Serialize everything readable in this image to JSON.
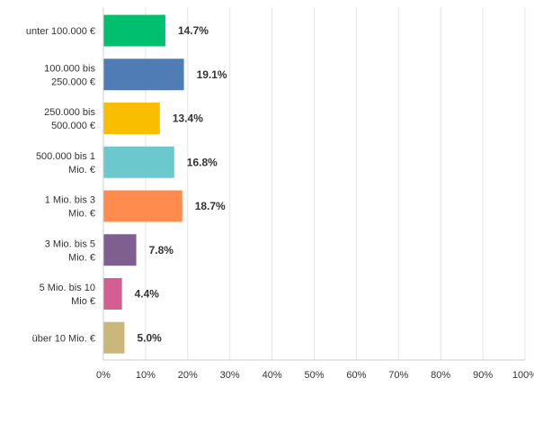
{
  "chart_data": {
    "type": "bar",
    "orientation": "horizontal",
    "categories": [
      [
        "unter 100.000 €"
      ],
      [
        "100.000 bis",
        "250.000 €"
      ],
      [
        "250.000 bis",
        "500.000 €"
      ],
      [
        "500.000 bis 1",
        "Mio. €"
      ],
      [
        "1 Mio. bis 3",
        "Mio. €"
      ],
      [
        "3 Mio. bis 5",
        "Mio. €"
      ],
      [
        "5 Mio. bis 10",
        "Mio €"
      ],
      [
        "über 10 Mio. €"
      ]
    ],
    "values": [
      14.7,
      19.1,
      13.4,
      16.8,
      18.7,
      7.8,
      4.4,
      5.0
    ],
    "data_labels": [
      "14.7%",
      "19.1%",
      "13.4%",
      "16.8%",
      "18.7%",
      "7.8%",
      "4.4%",
      "5.0%"
    ],
    "colors": [
      "#00bf6f",
      "#507cb6",
      "#f9be00",
      "#6bc8cd",
      "#ff8b4f",
      "#7f5f90",
      "#d25f90",
      "#c9b77b"
    ],
    "x_ticks": [
      0,
      10,
      20,
      30,
      40,
      50,
      60,
      70,
      80,
      90,
      100
    ],
    "x_tick_labels": [
      "0%",
      "10%",
      "20%",
      "30%",
      "40%",
      "50%",
      "60%",
      "70%",
      "80%",
      "90%",
      "100%"
    ],
    "xlim": [
      0,
      100
    ],
    "grid": true,
    "title": "",
    "xlabel": "",
    "ylabel": ""
  }
}
